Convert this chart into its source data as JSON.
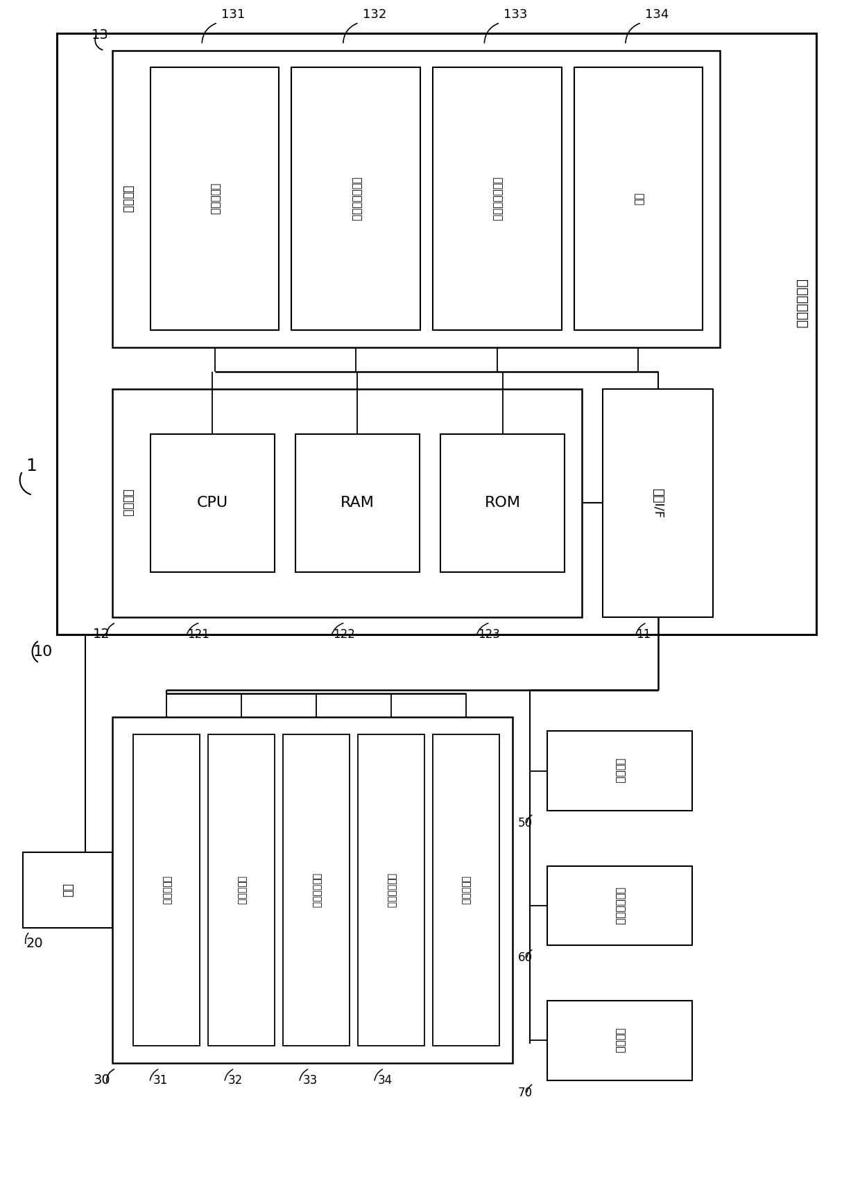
{
  "bg_color": "#ffffff",
  "text_data_processing": "数据处理装置",
  "text_storage_unit": "存儲单元",
  "text_image_storage": "图像存儲部",
  "text_acquire_storage": "获取数据存儲部",
  "text_calc_storage": "计算数据存儲部",
  "text_program": "程序",
  "text_control_unit": "控制单元",
  "text_cpu": "CPU",
  "text_ram": "RAM",
  "text_rom": "ROM",
  "text_ext_if": "外部I/F",
  "text_camera": "相机",
  "text_sensor1": "车载传感器",
  "text_sensor2": "车外传感器",
  "text_sensor3": "加速度传感器",
  "text_sensor4": "陌螺仪传感器",
  "text_sensor5": "转向传感器",
  "text_navigation": "导航装置",
  "text_ecu": "电子控制单元",
  "text_wake": "唤醒装置",
  "lw_outer": 2.0,
  "lw_inner": 1.5,
  "lw_thin": 1.2
}
